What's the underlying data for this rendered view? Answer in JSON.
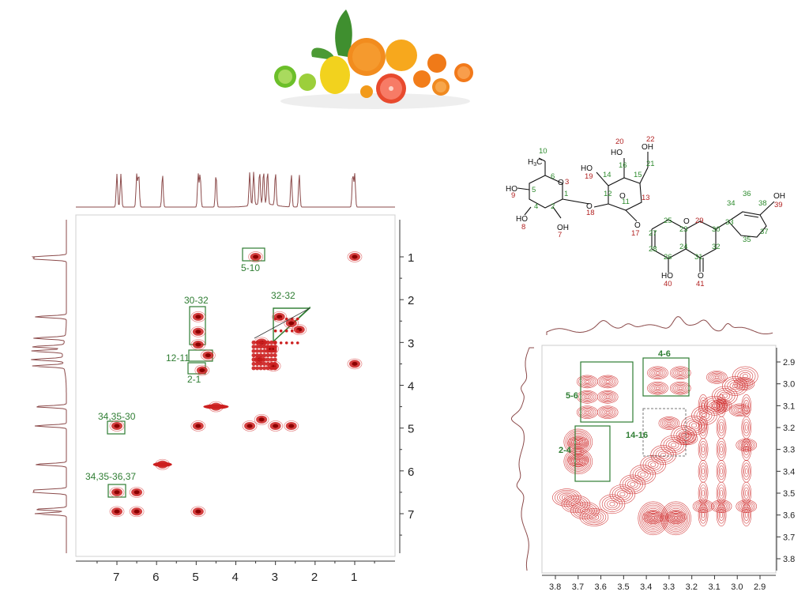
{
  "chart_data": [
    {
      "type": "heatmap",
      "title": "",
      "xlabel": "",
      "ylabel": "",
      "xlim": [
        8,
        0
      ],
      "ylim": [
        8,
        0
      ],
      "x_ticks": [
        "7",
        "6",
        "5",
        "4",
        "3",
        "2",
        "1"
      ],
      "y_ticks": [
        "1",
        "2",
        "3",
        "4",
        "5",
        "6",
        "7"
      ],
      "box_labels": [
        "5-10",
        "30-32",
        "32-32",
        "12-11",
        "2-1",
        "34,35-30",
        "34,35-36,37"
      ],
      "cross_peaks": [
        {
          "x": 3.5,
          "y": 1.0
        },
        {
          "x": 1.0,
          "y": 1.0
        },
        {
          "x": 4.95,
          "y": 2.4
        },
        {
          "x": 4.95,
          "y": 2.75
        },
        {
          "x": 4.95,
          "y": 3.05
        },
        {
          "x": 2.9,
          "y": 2.4
        },
        {
          "x": 2.6,
          "y": 2.55
        },
        {
          "x": 2.4,
          "y": 2.7
        },
        {
          "x": 3.35,
          "y": 3.0
        },
        {
          "x": 3.1,
          "y": 3.15
        },
        {
          "x": 3.4,
          "y": 3.4
        },
        {
          "x": 3.05,
          "y": 3.55
        },
        {
          "x": 4.7,
          "y": 3.3
        },
        {
          "x": 4.85,
          "y": 3.65
        },
        {
          "x": 1.0,
          "y": 3.5
        },
        {
          "x": 4.5,
          "y": 4.5
        },
        {
          "x": 4.95,
          "y": 4.95
        },
        {
          "x": 3.65,
          "y": 4.95
        },
        {
          "x": 3.35,
          "y": 4.8
        },
        {
          "x": 3.0,
          "y": 4.95
        },
        {
          "x": 2.6,
          "y": 4.95
        },
        {
          "x": 7.0,
          "y": 4.95
        },
        {
          "x": 5.85,
          "y": 5.85
        },
        {
          "x": 7.0,
          "y": 6.5
        },
        {
          "x": 6.5,
          "y": 6.5
        },
        {
          "x": 7.0,
          "y": 6.95
        },
        {
          "x": 6.5,
          "y": 6.95
        },
        {
          "x": 4.95,
          "y": 6.95
        }
      ],
      "f2_projection_peaks": [
        7.0,
        6.9,
        6.5,
        6.45,
        5.85,
        4.95,
        4.9,
        4.5,
        3.65,
        3.55,
        3.4,
        3.3,
        3.2,
        3.0,
        2.6,
        2.4,
        1.05,
        1.0
      ],
      "f1_projection_peaks": [
        1.0,
        1.05,
        2.4,
        2.9,
        3.1,
        3.2,
        3.4,
        3.55,
        4.5,
        4.95,
        5.85,
        6.45,
        6.5,
        6.9,
        7.0
      ]
    },
    {
      "type": "heatmap",
      "title": "",
      "xlabel": "",
      "ylabel": "",
      "xlim": [
        3.85,
        2.85
      ],
      "ylim": [
        3.85,
        2.85
      ],
      "x_ticks": [
        "3.8",
        "3.7",
        "3.6",
        "3.5",
        "3.4",
        "3.3",
        "3.2",
        "3.1",
        "3.0",
        "2.9"
      ],
      "y_ticks": [
        "2.9",
        "3.0",
        "3.1",
        "3.2",
        "3.3",
        "3.4",
        "3.5",
        "3.6",
        "3.7",
        "3.8"
      ],
      "box_labels": [
        "4-6",
        "5-6",
        "14-16",
        "2-4"
      ],
      "cross_peaks": [
        {
          "x": 3.66,
          "y": 2.99
        },
        {
          "x": 3.57,
          "y": 2.99
        },
        {
          "x": 3.66,
          "y": 3.06
        },
        {
          "x": 3.57,
          "y": 3.06
        },
        {
          "x": 3.66,
          "y": 3.13
        },
        {
          "x": 3.57,
          "y": 3.13
        },
        {
          "x": 3.35,
          "y": 2.95
        },
        {
          "x": 3.25,
          "y": 2.95
        },
        {
          "x": 3.35,
          "y": 3.02
        },
        {
          "x": 3.25,
          "y": 3.02
        },
        {
          "x": 3.7,
          "y": 3.27
        },
        {
          "x": 3.7,
          "y": 3.35
        },
        {
          "x": 3.3,
          "y": 3.18
        },
        {
          "x": 3.22,
          "y": 3.25
        },
        {
          "x": 3.37,
          "y": 3.61
        },
        {
          "x": 3.27,
          "y": 3.61
        },
        {
          "x": 3.15,
          "y": 3.56
        },
        {
          "x": 3.07,
          "y": 3.56
        },
        {
          "x": 2.96,
          "y": 3.56
        },
        {
          "x": 3.07,
          "y": 3.1
        },
        {
          "x": 2.99,
          "y": 3.12
        },
        {
          "x": 2.96,
          "y": 3.28
        },
        {
          "x": 3.09,
          "y": 2.97
        },
        {
          "x": 2.97,
          "y": 3.0
        }
      ]
    }
  ],
  "structure": {
    "atom_numbers": [
      "1",
      "2",
      "3",
      "4",
      "5",
      "6",
      "7",
      "8",
      "9",
      "10",
      "11",
      "12",
      "13",
      "14",
      "15",
      "16",
      "17",
      "18",
      "19",
      "20",
      "21",
      "22",
      "23",
      "24",
      "25",
      "26",
      "27",
      "28",
      "29",
      "30",
      "31",
      "32",
      "33",
      "34",
      "35",
      "36",
      "37",
      "38",
      "39",
      "40",
      "41"
    ],
    "groups": [
      "HO",
      "OH",
      "O",
      "H3C"
    ]
  },
  "colors": {
    "contour": "#cc1f1f",
    "contour_light": "#d94a4a",
    "box": "#2e7d32",
    "label": "#2e7d32",
    "projection": "#8b4a4a",
    "atom_green": "#2e8b2e",
    "atom_red": "#b22222"
  },
  "icons": [
    "citrus-fruits-image"
  ]
}
